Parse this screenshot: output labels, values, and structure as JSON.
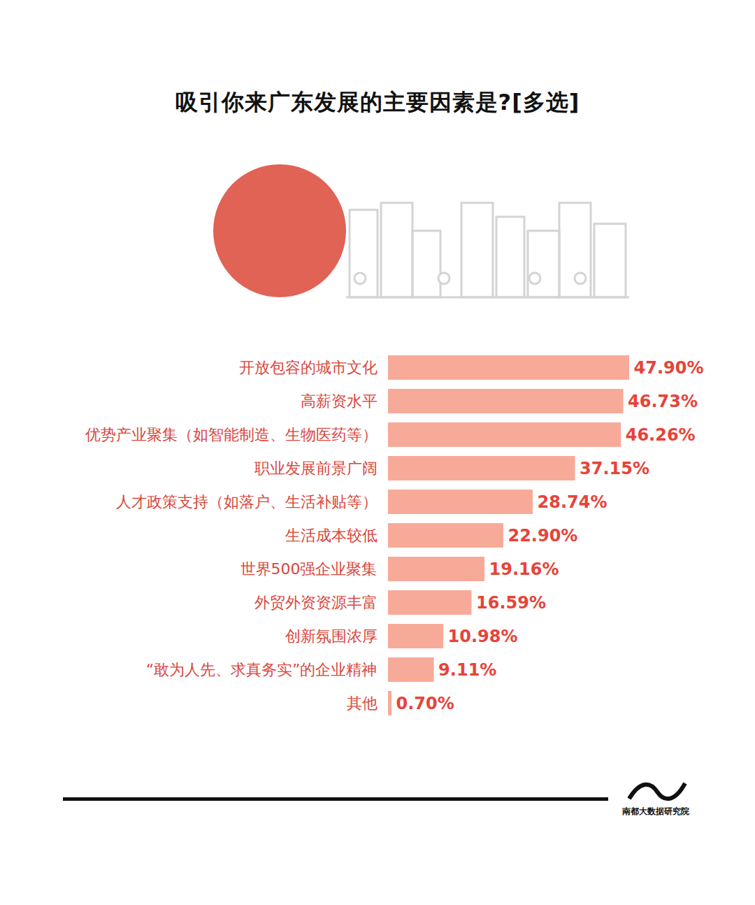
{
  "chart_data": {
    "type": "bar",
    "title": "吸引你来广东发展的主要因素是?[多选]",
    "orientation": "horizontal",
    "categories": [
      "开放包容的城市文化",
      "高薪资水平",
      "优势产业聚集（如智能制造、生物医药等）",
      "职业发展前景广阔",
      "人才政策支持（如落户、生活补贴等）",
      "生活成本较低",
      "世界500强企业聚集",
      "外贸外资资源丰富",
      "创新氛围浓厚",
      "“敢为人先、求真务实”的企业精神",
      "其他"
    ],
    "values": [
      47.9,
      46.73,
      46.26,
      37.15,
      28.74,
      22.9,
      19.16,
      16.59,
      10.98,
      9.11,
      0.7
    ],
    "value_labels": [
      "47.90%",
      "46.73%",
      "46.26%",
      "37.15%",
      "28.74%",
      "22.90%",
      "19.16%",
      "16.59%",
      "10.98%",
      "9.11%",
      "0.70%"
    ],
    "color": "#f8aa99",
    "data_labels": true,
    "tick_labels": "y",
    "source": "南都大数据研究院"
  }
}
